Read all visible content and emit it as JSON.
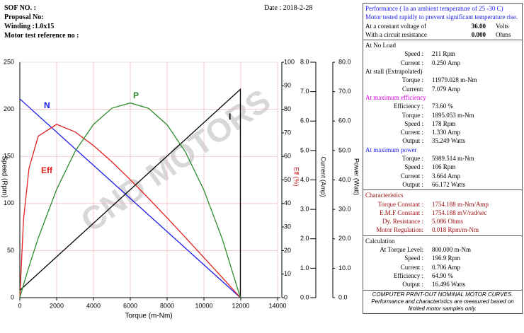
{
  "header": {
    "sof": "SOF NO. :",
    "date": "Date : 2018-2-28",
    "proposal": "Proposal No:",
    "winding": "Winding :1.0x15",
    "reference": "Motor test reference no :"
  },
  "chart_data": {
    "type": "line",
    "watermark": "CND MOTORS",
    "xlabel": "Torque (m-Nm)",
    "xlim": [
      0,
      14000
    ],
    "xticks": [
      0,
      2000,
      4000,
      6000,
      8000,
      10000,
      12000,
      14000
    ],
    "ylabel": "Speed (Rpm)",
    "ylim": [
      0,
      250
    ],
    "yticks": [
      0,
      50,
      100,
      150,
      200,
      250
    ],
    "y2label": "Eff (%)",
    "y2lim": [
      0,
      100
    ],
    "y2ticks": [
      0,
      10,
      20,
      30,
      40,
      50,
      60,
      70,
      80,
      90,
      100
    ],
    "y3label": "Current (Amp)",
    "y3lim": [
      0,
      8
    ],
    "y3ticks": [
      {
        "value": 0,
        "label": "0.0"
      },
      {
        "value": 1,
        "label": "1.0"
      },
      {
        "value": 2,
        "label": "2.0"
      },
      {
        "value": 3,
        "label": "3.0"
      },
      {
        "value": 4,
        "label": "4.0"
      },
      {
        "value": 5,
        "label": "5.0"
      },
      {
        "value": 6,
        "label": "6.0"
      },
      {
        "value": 7,
        "label": "7.0"
      },
      {
        "value": 8,
        "label": "8.0"
      }
    ],
    "y4label": "Power (Watt)",
    "y4lim": [
      0,
      80
    ],
    "y4ticks": [
      {
        "value": 0,
        "label": "0.0"
      },
      {
        "value": 10,
        "label": "10.0"
      },
      {
        "value": 20,
        "label": "20.0"
      },
      {
        "value": 30,
        "label": "30.0"
      },
      {
        "value": 40,
        "label": "40.0"
      },
      {
        "value": 50,
        "label": "50.0"
      },
      {
        "value": 60,
        "label": "60.0"
      },
      {
        "value": 70,
        "label": "70.0"
      },
      {
        "value": 80,
        "label": "80.0"
      }
    ],
    "grid": true,
    "series": [
      {
        "name": "N",
        "color": "#1a1aee",
        "axis": "y",
        "x": [
          0,
          11979
        ],
        "values": [
          211,
          0
        ]
      },
      {
        "name": "Eff",
        "color": "#e02020",
        "axis": "y2",
        "x": [
          0,
          200,
          500,
          1000,
          2000,
          3000,
          4000,
          5000,
          6000,
          7000,
          8000,
          9000,
          10000,
          11000,
          11979
        ],
        "values": [
          0,
          33.2,
          55.0,
          68.6,
          73.6,
          70.4,
          64.6,
          57.7,
          50.1,
          42.1,
          33.9,
          25.5,
          17.0,
          8.5,
          0
        ]
      },
      {
        "name": "I",
        "color": "#000000",
        "axis": "y3",
        "x": [
          0,
          11979,
          11979
        ],
        "values": [
          0.25,
          7.079,
          0
        ]
      },
      {
        "name": "P",
        "color": "#2e8b2e",
        "axis": "y4",
        "x": [
          0,
          200,
          500,
          1000,
          2000,
          3000,
          4000,
          5000,
          6000,
          7000,
          8000,
          9000,
          10000,
          11000,
          11979
        ],
        "values": [
          0,
          4.35,
          10.59,
          20.25,
          36.81,
          49.69,
          58.87,
          64.37,
          66.17,
          64.29,
          58.72,
          49.45,
          36.51,
          19.86,
          0
        ]
      }
    ]
  },
  "panel": [
    {
      "items": [
        {
          "t": "Performance ( In an ambient temperature of 25 -30 C)",
          "color": "#1a1aee"
        },
        {
          "t": "Motor tested rapidly to prevent significant temperature rise.",
          "color": "#1a1aee"
        },
        {
          "r3": [
            "At a constant voltage of",
            "36.00",
            "Volts"
          ]
        },
        {
          "r3": [
            "With a circuit resistance",
            "0.000",
            "Ohms"
          ]
        }
      ]
    },
    {
      "items": [
        {
          "t": "At No Load"
        },
        {
          "r": [
            "Speed :",
            "211 Rpm"
          ]
        },
        {
          "r": [
            "Current :",
            "0.250 Amp"
          ]
        },
        {
          "t": "At stall (Extrapolated)"
        },
        {
          "r": [
            "Torque :",
            "11979.028 m-Nm"
          ]
        },
        {
          "r": [
            "Current:",
            "7.079 Amp"
          ]
        },
        {
          "t": "At maximum efficiency",
          "color": "#e000e0"
        },
        {
          "r": [
            "Efficiency :",
            "73.60 %"
          ]
        },
        {
          "r": [
            "Torque :",
            "1895.053 m-Nm"
          ]
        },
        {
          "r": [
            "Speed :",
            "178 Rpm"
          ]
        },
        {
          "r": [
            "Current :",
            "1.330 Amp"
          ]
        },
        {
          "r": [
            "Output :",
            "35.249 Watts"
          ]
        },
        {
          "t": "At maximum power",
          "color": "#1a1aee"
        },
        {
          "r": [
            "Torque :",
            "5989.514 m-Nm"
          ]
        },
        {
          "r": [
            "Speed :",
            "106 Rpm"
          ]
        },
        {
          "r": [
            "Current :",
            "3.664 Amp"
          ]
        },
        {
          "r": [
            "Output :",
            "66.172 Watts"
          ]
        }
      ]
    },
    {
      "color": "#a01010",
      "items": [
        {
          "t": "Characteristics"
        },
        {
          "r": [
            "Torque Constant :",
            "1754.188 m-Nm/Amp"
          ]
        },
        {
          "r": [
            "E.M.F Constant :",
            "1754.188 mV/rad/sec"
          ]
        },
        {
          "r": [
            "Dy. Resistance :",
            "5.086 Ohms"
          ]
        },
        {
          "r": [
            "Motor Regulation:",
            "0.018 Rpm/m-Nm"
          ]
        }
      ]
    },
    {
      "items": [
        {
          "t": "Calculation"
        },
        {
          "r": [
            "At Torque Level:",
            "800.000 m-Nm"
          ]
        },
        {
          "r": [
            "Speed :",
            "196.9 Rpm"
          ]
        },
        {
          "r": [
            "Current :",
            "0.706 Amp"
          ]
        },
        {
          "r": [
            "Efficiency :",
            "64.90 %"
          ]
        },
        {
          "r": [
            "Output :",
            "16.496 Watts"
          ]
        }
      ]
    },
    {
      "footer": true,
      "items": [
        {
          "t": "COMPUTER PRINT-OUT NOMINAL MOTOR CURVES."
        },
        {
          "t": "Performance and characteristics are measured based on limited motor samples only."
        }
      ]
    }
  ]
}
